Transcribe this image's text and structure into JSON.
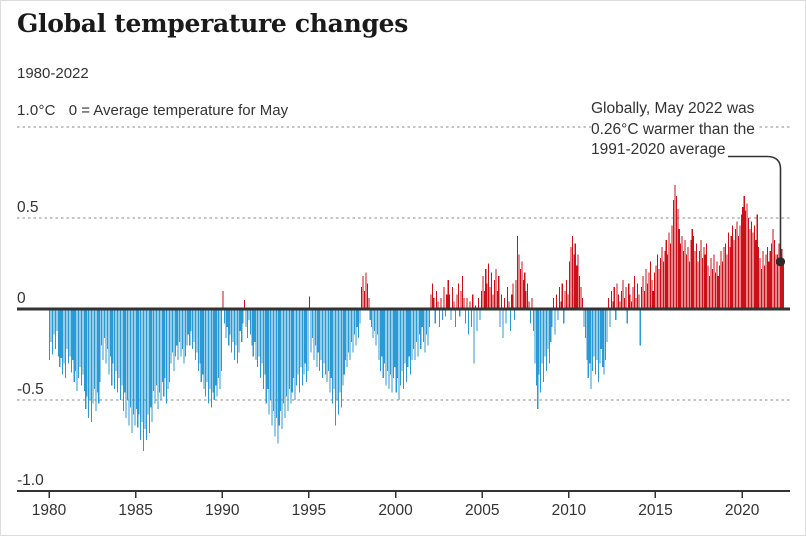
{
  "header": {
    "title": "Global temperature changes",
    "subtitle": "1980-2022"
  },
  "axis": {
    "unit_label": "1.0°C",
    "zero_note": "0 = Average temperature for May"
  },
  "annotation": {
    "lines": [
      "Globally, May 2022 was",
      "0.26°C warmer than the",
      "1991-2020 average"
    ]
  },
  "colors": {
    "positive_bar": "#cc1017",
    "negative_bar": "#2a9ad6",
    "axis_line": "#333333",
    "gridline": "#8a8a8a",
    "text": "#333333",
    "title": "#1a1a1a",
    "annotation_dot": "#2b2b2b"
  },
  "chart_data": {
    "type": "bar",
    "title": "Global temperature changes",
    "subtitle": "1980-2022",
    "unit": "°C",
    "baseline_note": "0 = Average temperature for May (relative to 1991-2020 average)",
    "frequency": "monthly",
    "x_start": "1980-01",
    "x_end": "2022-05",
    "ylim": [
      -1.0,
      1.0
    ],
    "dotted_gridlines": [
      1.0,
      0.5,
      -0.5
    ],
    "y_ticks": [
      {
        "label": "0.5",
        "value": 0.5
      },
      {
        "label": "0",
        "value": 0
      },
      {
        "label": "-0.5",
        "value": -0.5
      },
      {
        "label": "-1.0",
        "value": -1.0
      }
    ],
    "x_tick_years": [
      1980,
      1985,
      1990,
      1995,
      2000,
      2005,
      2010,
      2015,
      2020
    ],
    "annotation_point": {
      "label": "May 2022",
      "value": 0.26
    },
    "values": [
      -0.28,
      -0.18,
      -0.25,
      -0.14,
      -0.22,
      -0.12,
      -0.26,
      -0.32,
      -0.27,
      -0.36,
      -0.3,
      -0.38,
      -0.22,
      -0.3,
      -0.26,
      -0.35,
      -0.28,
      -0.4,
      -0.34,
      -0.45,
      -0.38,
      -0.32,
      -0.42,
      -0.36,
      -0.45,
      -0.55,
      -0.48,
      -0.6,
      -0.5,
      -0.62,
      -0.52,
      -0.44,
      -0.56,
      -0.46,
      -0.52,
      -0.4,
      -0.2,
      -0.28,
      -0.16,
      -0.3,
      -0.22,
      -0.36,
      -0.26,
      -0.42,
      -0.3,
      -0.44,
      -0.34,
      -0.46,
      -0.38,
      -0.5,
      -0.42,
      -0.56,
      -0.46,
      -0.6,
      -0.5,
      -0.64,
      -0.54,
      -0.68,
      -0.58,
      -0.64,
      -0.55,
      -0.65,
      -0.58,
      -0.72,
      -0.62,
      -0.78,
      -0.66,
      -0.72,
      -0.58,
      -0.68,
      -0.54,
      -0.62,
      -0.45,
      -0.52,
      -0.42,
      -0.55,
      -0.46,
      -0.5,
      -0.4,
      -0.48,
      -0.38,
      -0.52,
      -0.44,
      -0.4,
      -0.3,
      -0.24,
      -0.34,
      -0.26,
      -0.2,
      -0.28,
      -0.18,
      -0.26,
      -0.22,
      -0.3,
      -0.26,
      -0.2,
      -0.14,
      -0.2,
      -0.12,
      -0.22,
      -0.18,
      -0.28,
      -0.24,
      -0.34,
      -0.3,
      -0.4,
      -0.36,
      -0.44,
      -0.48,
      -0.4,
      -0.52,
      -0.44,
      -0.54,
      -0.46,
      -0.5,
      -0.42,
      -0.48,
      -0.38,
      -0.44,
      -0.34,
      0.1,
      -0.08,
      -0.16,
      -0.1,
      -0.2,
      -0.14,
      -0.24,
      -0.18,
      -0.28,
      -0.2,
      -0.3,
      -0.24,
      -0.12,
      -0.18,
      -0.08,
      0.05,
      -0.1,
      -0.16,
      -0.06,
      -0.14,
      -0.2,
      -0.26,
      -0.18,
      -0.28,
      -0.32,
      -0.26,
      -0.38,
      -0.3,
      -0.44,
      -0.36,
      -0.52,
      -0.44,
      -0.58,
      -0.5,
      -0.64,
      -0.56,
      -0.7,
      -0.6,
      -0.74,
      -0.64,
      -0.56,
      -0.66,
      -0.52,
      -0.6,
      -0.48,
      -0.56,
      -0.44,
      -0.52,
      -0.46,
      -0.38,
      -0.5,
      -0.42,
      -0.36,
      -0.46,
      -0.32,
      -0.42,
      -0.36,
      -0.3,
      -0.4,
      -0.34,
      0.07,
      -0.24,
      -0.16,
      -0.28,
      -0.2,
      -0.32,
      -0.24,
      -0.34,
      -0.28,
      -0.38,
      -0.3,
      -0.36,
      -0.4,
      -0.34,
      -0.46,
      -0.38,
      -0.52,
      -0.44,
      -0.64,
      -0.5,
      -0.58,
      -0.46,
      -0.54,
      -0.42,
      -0.36,
      -0.28,
      -0.32,
      -0.24,
      -0.28,
      -0.18,
      -0.24,
      -0.14,
      -0.2,
      -0.1,
      -0.16,
      -0.08,
      0.12,
      0.18,
      0.1,
      0.2,
      0.14,
      0.06,
      -0.06,
      -0.1,
      -0.16,
      -0.12,
      -0.2,
      -0.14,
      -0.28,
      -0.34,
      -0.26,
      -0.38,
      -0.3,
      -0.42,
      -0.34,
      -0.44,
      -0.36,
      -0.46,
      -0.38,
      -0.32,
      -0.46,
      -0.38,
      -0.5,
      -0.42,
      -0.34,
      -0.44,
      -0.3,
      -0.4,
      -0.32,
      -0.26,
      -0.36,
      -0.28,
      -0.22,
      -0.28,
      -0.18,
      -0.26,
      -0.14,
      -0.22,
      -0.1,
      -0.18,
      -0.24,
      -0.14,
      -0.2,
      -0.1,
      0.08,
      0.14,
      0.06,
      -0.08,
      0.1,
      0.04,
      -0.1,
      0.06,
      -0.06,
      0.12,
      -0.04,
      0.08,
      0.16,
      0.08,
      -0.06,
      0.12,
      0.04,
      -0.1,
      0.08,
      0.14,
      -0.04,
      0.1,
      0.18,
      0.06,
      -0.08,
      0.06,
      -0.14,
      0.04,
      -0.1,
      0.08,
      -0.3,
      0.02,
      -0.12,
      0.06,
      -0.06,
      0.1,
      0.18,
      0.1,
      0.22,
      0.14,
      0.25,
      0.12,
      0.2,
      0.08,
      0.16,
      0.22,
      0.1,
      0.18,
      -0.1,
      0.08,
      -0.16,
      0.06,
      -0.08,
      0.12,
      0.04,
      -0.12,
      0.08,
      0.14,
      -0.06,
      0.16,
      0.4,
      0.3,
      0.22,
      0.26,
      0.16,
      0.2,
      0.1,
      0.14,
      0.04,
      -0.08,
      0.06,
      -0.12,
      -0.3,
      -0.42,
      -0.55,
      -0.36,
      -0.46,
      -0.3,
      -0.4,
      -0.26,
      -0.34,
      -0.22,
      -0.3,
      -0.18,
      -0.1,
      0.06,
      -0.14,
      0.08,
      -0.06,
      0.12,
      0.04,
      0.14,
      -0.08,
      0.1,
      0.16,
      0.08,
      0.26,
      0.34,
      0.4,
      0.3,
      0.36,
      0.24,
      0.3,
      0.18,
      0.12,
      0.06,
      -0.1,
      -0.16,
      -0.28,
      -0.38,
      -0.3,
      -0.44,
      -0.34,
      -0.26,
      -0.36,
      -0.28,
      -0.4,
      -0.3,
      -0.22,
      -0.32,
      -0.36,
      -0.28,
      -0.18,
      0.06,
      -0.1,
      0.1,
      0.04,
      0.12,
      -0.06,
      0.14,
      0.08,
      0.04,
      0.1,
      0.16,
      0.06,
      0.12,
      -0.08,
      0.14,
      0.08,
      0.04,
      0.12,
      0.18,
      0.06,
      0.14,
      0.08,
      -0.2,
      0.12,
      0.18,
      0.1,
      0.22,
      0.14,
      0.2,
      0.26,
      0.16,
      0.1,
      0.2,
      0.24,
      0.3,
      0.22,
      0.28,
      0.34,
      0.26,
      0.32,
      0.38,
      0.3,
      0.42,
      0.36,
      0.46,
      0.6,
      0.68,
      0.62,
      0.55,
      0.44,
      0.36,
      0.4,
      0.32,
      0.38,
      0.3,
      0.34,
      0.26,
      0.38,
      0.44,
      0.4,
      0.32,
      0.36,
      0.26,
      0.32,
      0.38,
      0.28,
      0.34,
      0.3,
      0.36,
      0.24,
      0.18,
      0.28,
      0.22,
      0.3,
      0.2,
      0.26,
      0.18,
      0.24,
      0.32,
      0.26,
      0.34,
      0.36,
      0.3,
      0.42,
      0.34,
      0.4,
      0.46,
      0.38,
      0.44,
      0.48,
      0.4,
      0.46,
      0.52,
      0.56,
      0.62,
      0.54,
      0.58,
      0.5,
      0.44,
      0.48,
      0.42,
      0.46,
      0.38,
      0.52,
      0.34,
      0.28,
      0.22,
      0.32,
      0.24,
      0.3,
      0.34,
      0.26,
      0.32,
      0.36,
      0.44,
      0.38,
      0.3,
      0.3,
      0.36,
      0.42,
      0.33,
      0.26
    ]
  }
}
